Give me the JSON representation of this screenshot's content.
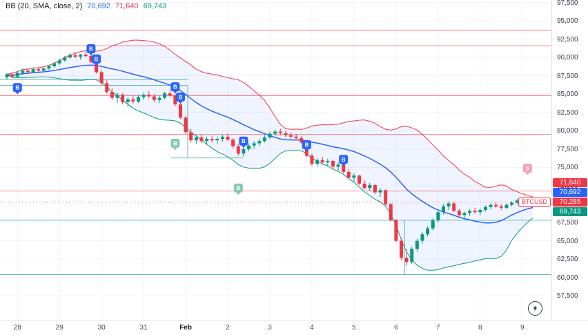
{
  "symbol_label": "BTCUSD",
  "legend": {
    "indicator": "BB (20, SMA, close, 2)",
    "values": [
      {
        "label": "70,692",
        "color": "#2962ff"
      },
      {
        "label": "71,640",
        "color": "#f23645"
      },
      {
        "label": "69,743",
        "color": "#089981"
      }
    ]
  },
  "price_labels": [
    {
      "text": "71,640",
      "bg": "#f23645",
      "price": 71640,
      "name": "bb-upper-price-label"
    },
    {
      "text": "70,692",
      "bg": "#2962ff",
      "price": 70692,
      "name": "bb-basis-price-label"
    },
    {
      "text": "70,285",
      "bg": "#f23645",
      "price": 70285,
      "name": "last-price-label"
    },
    {
      "text": "69,743",
      "bg": "#089981",
      "price": 69743,
      "name": "bb-lower-price-label"
    }
  ],
  "axis": {
    "price_ticks": [
      {
        "value": 97500,
        "label": "97,500"
      },
      {
        "value": 95000,
        "label": "95,000"
      },
      {
        "value": 92500,
        "label": "92,500"
      },
      {
        "value": 90000,
        "label": "90,000"
      },
      {
        "value": 87500,
        "label": "87,500"
      },
      {
        "value": 85000,
        "label": "85,000"
      },
      {
        "value": 82500,
        "label": "82,500"
      },
      {
        "value": 80000,
        "label": "80,000"
      },
      {
        "value": 77500,
        "label": "77,500"
      },
      {
        "value": 75000,
        "label": "75,000"
      },
      {
        "value": 72500,
        "label": "72,500"
      },
      {
        "value": 70000,
        "label": "70,000"
      },
      {
        "value": 67500,
        "label": "67,500"
      },
      {
        "value": 65000,
        "label": "65,000"
      },
      {
        "value": 62500,
        "label": "62,500"
      },
      {
        "value": 60000,
        "label": "60,000"
      },
      {
        "value": 57500,
        "label": "57,500"
      }
    ],
    "time_ticks": [
      {
        "label": "28",
        "i": 2
      },
      {
        "label": "29",
        "i": 10
      },
      {
        "label": "30",
        "i": 18
      },
      {
        "label": "31",
        "i": 26
      },
      {
        "label": "Feb",
        "i": 34,
        "major": true
      },
      {
        "label": "2",
        "i": 42
      },
      {
        "label": "3",
        "i": 50
      },
      {
        "label": "4",
        "i": 58
      },
      {
        "label": "5",
        "i": 66
      },
      {
        "label": "6",
        "i": 74
      },
      {
        "label": "7",
        "i": 82
      },
      {
        "label": "8",
        "i": 90
      },
      {
        "label": "9",
        "i": 98
      }
    ]
  },
  "chart_data": {
    "type": "candlestick",
    "symbol": "BTCUSD",
    "visible_range": "Jan 28 - Feb 9",
    "last_price": 70285,
    "ylim": [
      54040,
      97838
    ],
    "x_offset": 10,
    "candle_spacing": 7.62,
    "up_color": "#089981",
    "down_color": "#f23645",
    "grid_color": "#f0f3fa",
    "bollinger": {
      "period": 20,
      "stddev": 2,
      "source": "close",
      "basis_value": 70692,
      "upper_value": 71640,
      "lower_value": 69743,
      "basis_color": "#2962ff",
      "upper_color": "#f23645",
      "lower_color": "#089981",
      "fill": "rgba(41,98,255,0.07)"
    },
    "candles": [
      [
        87300,
        87900,
        87000,
        87700
      ],
      [
        87700,
        88000,
        87200,
        87400
      ],
      [
        87400,
        88100,
        87300,
        87900
      ],
      [
        87900,
        88400,
        87600,
        88200
      ],
      [
        88200,
        88500,
        87800,
        88000
      ],
      [
        88000,
        88600,
        87900,
        88400
      ],
      [
        88400,
        88700,
        88000,
        88200
      ],
      [
        88200,
        88600,
        88000,
        88500
      ],
      [
        88500,
        89000,
        88300,
        88800
      ],
      [
        88800,
        89400,
        88600,
        89200
      ],
      [
        89200,
        89800,
        89000,
        89600
      ],
      [
        89600,
        90200,
        89400,
        90000
      ],
      [
        90000,
        90600,
        89800,
        90300
      ],
      [
        90300,
        90700,
        89900,
        90100
      ],
      [
        90100,
        90500,
        89700,
        90400
      ],
      [
        90400,
        90800,
        90000,
        90200
      ],
      [
        90200,
        90400,
        89200,
        89400
      ],
      [
        89400,
        89600,
        87800,
        88000
      ],
      [
        88000,
        88300,
        86200,
        86500
      ],
      [
        86500,
        86900,
        85000,
        85300
      ],
      [
        85300,
        85800,
        84200,
        84500
      ],
      [
        84500,
        85200,
        83800,
        84900
      ],
      [
        84900,
        85100,
        83600,
        83900
      ],
      [
        83900,
        84600,
        83300,
        84300
      ],
      [
        84300,
        84800,
        83700,
        84000
      ],
      [
        84000,
        84900,
        83800,
        84600
      ],
      [
        84600,
        85200,
        84200,
        84900
      ],
      [
        84900,
        85400,
        84400,
        84700
      ],
      [
        84700,
        85000,
        83900,
        84200
      ],
      [
        84200,
        84800,
        83800,
        84500
      ],
      [
        84500,
        85300,
        84300,
        85100
      ],
      [
        85100,
        85500,
        84600,
        84800
      ],
      [
        84800,
        85000,
        83400,
        83600
      ],
      [
        83600,
        83800,
        81600,
        81800
      ],
      [
        81800,
        82000,
        79600,
        79800
      ],
      [
        79800,
        80300,
        78400,
        78700
      ],
      [
        78700,
        79400,
        78200,
        79100
      ],
      [
        79100,
        79500,
        78300,
        78600
      ],
      [
        78600,
        79200,
        78100,
        78900
      ],
      [
        78900,
        79300,
        78400,
        78700
      ],
      [
        78700,
        79200,
        78200,
        78900
      ],
      [
        78900,
        79500,
        78500,
        79200
      ],
      [
        79200,
        79600,
        78600,
        78800
      ],
      [
        78800,
        79000,
        77600,
        77900
      ],
      [
        77900,
        78200,
        76600,
        76900
      ],
      [
        76900,
        77800,
        76500,
        77500
      ],
      [
        77500,
        78300,
        77200,
        78000
      ],
      [
        78000,
        78600,
        77600,
        78300
      ],
      [
        78300,
        78900,
        77900,
        78600
      ],
      [
        78600,
        79400,
        78400,
        79100
      ],
      [
        79100,
        79900,
        78900,
        79600
      ],
      [
        79600,
        80200,
        79300,
        79900
      ],
      [
        79900,
        80300,
        79400,
        79700
      ],
      [
        79700,
        80000,
        79100,
        79400
      ],
      [
        79400,
        79800,
        78900,
        79200
      ],
      [
        79200,
        79600,
        78700,
        79000
      ],
      [
        79000,
        79300,
        78200,
        78400
      ],
      [
        78400,
        78600,
        76400,
        76600
      ],
      [
        76600,
        76900,
        75200,
        75500
      ],
      [
        75500,
        76300,
        75100,
        76000
      ],
      [
        76000,
        76500,
        75400,
        75700
      ],
      [
        75700,
        76200,
        75200,
        75900
      ],
      [
        75900,
        76100,
        74800,
        75100
      ],
      [
        75100,
        75700,
        74600,
        75400
      ],
      [
        75400,
        75600,
        74200,
        74400
      ],
      [
        74400,
        74800,
        73400,
        73600
      ],
      [
        73600,
        74200,
        73100,
        73900
      ],
      [
        73900,
        74000,
        72600,
        72800
      ],
      [
        72800,
        73300,
        72000,
        72200
      ],
      [
        72200,
        72900,
        71800,
        72600
      ],
      [
        72600,
        72800,
        71400,
        71600
      ],
      [
        71600,
        72200,
        71000,
        71900
      ],
      [
        71900,
        72000,
        69800,
        70000
      ],
      [
        70000,
        70200,
        67600,
        67800
      ],
      [
        67800,
        68000,
        64800,
        65000
      ],
      [
        65000,
        65400,
        62400,
        62700
      ],
      [
        62700,
        63800,
        61600,
        62100
      ],
      [
        62100,
        64200,
        61800,
        63900
      ],
      [
        63900,
        65300,
        63500,
        65000
      ],
      [
        65000,
        66200,
        64600,
        65900
      ],
      [
        65900,
        67000,
        65600,
        66700
      ],
      [
        66700,
        68100,
        66400,
        67800
      ],
      [
        67800,
        69200,
        67500,
        68900
      ],
      [
        68900,
        70000,
        68600,
        69700
      ],
      [
        69700,
        70400,
        69200,
        70100
      ],
      [
        70100,
        70300,
        68900,
        69100
      ],
      [
        69100,
        69400,
        68200,
        68500
      ],
      [
        68500,
        69000,
        68000,
        68800
      ],
      [
        68800,
        69300,
        68400,
        69100
      ],
      [
        69100,
        69500,
        68700,
        68900
      ],
      [
        68900,
        69400,
        68500,
        69200
      ],
      [
        69200,
        69800,
        69000,
        69600
      ],
      [
        69600,
        70100,
        69300,
        69900
      ],
      [
        69900,
        70200,
        69500,
        69700
      ],
      [
        69700,
        70000,
        69200,
        69500
      ],
      [
        69500,
        70100,
        69300,
        69900
      ],
      [
        69900,
        70400,
        69700,
        70200
      ],
      [
        70200,
        70700,
        70000,
        70500
      ],
      [
        70500,
        70900,
        70200,
        70400
      ],
      [
        70400,
        70800,
        70100,
        70600
      ],
      [
        70600,
        70900,
        70000,
        70285
      ]
    ],
    "levels": [
      {
        "price": 93700,
        "color": "#f77c80",
        "x0": 0,
        "x1": 1
      },
      {
        "price": 91600,
        "color": "#f77c80",
        "x0": 0,
        "x1": 1
      },
      {
        "price": 84800,
        "color": "#f77c80",
        "x0": 0,
        "x1": 1
      },
      {
        "price": 79500,
        "color": "#f77c80",
        "x0": 0,
        "x1": 1
      },
      {
        "price": 71800,
        "color": "#f77c80",
        "x0": 0,
        "x1": 1
      },
      {
        "price": 87000,
        "color": "#5fbfae",
        "x0": 0,
        "x1": 0.34
      },
      {
        "price": 86200,
        "color": "#5fbfae",
        "x0": 0,
        "x1": 0.34
      },
      {
        "price": 76300,
        "color": "#5fbfae",
        "x0": 0.31,
        "x1": 0.44
      },
      {
        "price": 67800,
        "color": "#5fbfae",
        "x0": 0,
        "x1": 1
      },
      {
        "price": 60400,
        "color": "#5fbfae",
        "x0": 0,
        "x1": 1
      }
    ],
    "vlevels": [
      {
        "x": 0.34,
        "p1": 86200,
        "p2": 76300,
        "color": "#5fbfae"
      },
      {
        "x": 0.733,
        "p1": 67800,
        "p2": 60400,
        "color": "#5fbfae"
      }
    ],
    "markers": [
      {
        "i": 2,
        "price": 85900,
        "glyph": "B",
        "color": "#2962ff",
        "name": "buy-marker"
      },
      {
        "i": 16,
        "price": 91200,
        "glyph": "B",
        "color": "#2962ff",
        "name": "buy-marker"
      },
      {
        "i": 17,
        "price": 89800,
        "glyph": "B",
        "color": "#2962ff",
        "name": "buy-marker"
      },
      {
        "i": 32,
        "price": 86000,
        "glyph": "B",
        "color": "#2962ff",
        "name": "buy-marker"
      },
      {
        "i": 33,
        "price": 84600,
        "glyph": "B",
        "color": "#2962ff",
        "name": "buy-marker"
      },
      {
        "i": 45,
        "price": 78600,
        "glyph": "B",
        "color": "#2962ff",
        "name": "buy-marker"
      },
      {
        "i": 57,
        "price": 78100,
        "glyph": "B",
        "color": "#2962ff",
        "name": "buy-marker"
      },
      {
        "i": 64,
        "price": 76100,
        "glyph": "B",
        "color": "#2962ff",
        "name": "buy-marker"
      },
      {
        "i": 32,
        "price": 78300,
        "glyph": "B",
        "color": "#82cbb2",
        "name": "pending-buy-marker"
      },
      {
        "i": 44,
        "price": 72200,
        "glyph": "B",
        "color": "#82cbb2",
        "name": "pending-buy-marker"
      },
      {
        "i": 99,
        "price": 74900,
        "glyph": "S",
        "color": "#f5a3b0",
        "name": "pending-sell-marker"
      }
    ]
  }
}
